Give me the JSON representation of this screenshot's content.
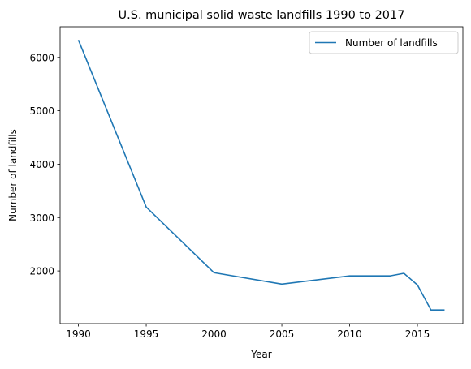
{
  "chart_data": {
    "type": "line",
    "title": "U.S. municipal solid waste landfills 1990 to 2017",
    "xlabel": "Year",
    "ylabel": "Number of landfills",
    "xlim": [
      1988.65,
      2018.35
    ],
    "ylim": [
      1014,
      6574
    ],
    "x_ticks": [
      1990,
      1995,
      2000,
      2005,
      2010,
      2015
    ],
    "y_ticks": [
      2000,
      3000,
      4000,
      5000,
      6000
    ],
    "grid": false,
    "legend_position": "top-right",
    "series": [
      {
        "name": "Number of landfills",
        "color": "#1f77b4",
        "x": [
          1990,
          1995,
          2000,
          2005,
          2010,
          2011,
          2012,
          2013,
          2014,
          2015,
          2016,
          2017
        ],
        "y": [
          6326,
          3197,
          1967,
          1754,
          1908,
          1908,
          1908,
          1908,
          1956,
          1738,
          1269,
          1269
        ]
      }
    ]
  }
}
